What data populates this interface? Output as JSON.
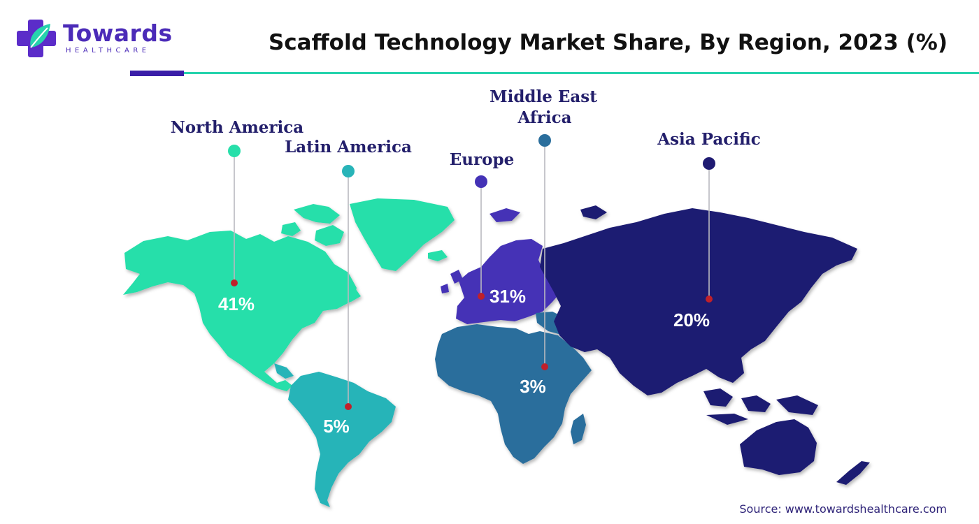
{
  "brand": {
    "name": "Towards",
    "tagline": "HEALTHCARE"
  },
  "title": "Scaffold Technology Market Share, By Region, 2023 (%)",
  "source": "Source: www.towardshealthcare.com",
  "colors": {
    "north_america": "#27dfaa",
    "latin_america": "#28b4b8",
    "europe": "#4432b6",
    "middle_east_africa": "#2a6e9c",
    "asia_pacific": "#1f1b72",
    "marker_dot": "#c0202a",
    "label_text": "#231f6b"
  },
  "chart_data": {
    "type": "map",
    "title": "Scaffold Technology Market Share, By Region, 2023 (%)",
    "unit": "%",
    "regions": [
      {
        "name": "North America",
        "label": "North America",
        "value": 41,
        "value_label": "41%"
      },
      {
        "name": "Latin America",
        "label": "Latin America",
        "value": 5,
        "value_label": "5%"
      },
      {
        "name": "Europe",
        "label": "Europe",
        "value": 31,
        "value_label": "31%"
      },
      {
        "name": "Middle East Africa",
        "label_lines": [
          "Middle East",
          "Africa"
        ],
        "value": 3,
        "value_label": "3%"
      },
      {
        "name": "Asia Pacific",
        "label": "Asia Pacific",
        "value": 20,
        "value_label": "20%"
      }
    ]
  }
}
